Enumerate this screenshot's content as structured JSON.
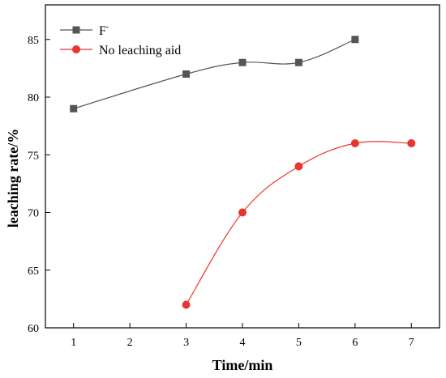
{
  "chart_data": {
    "type": "line",
    "xlabel": "Time/min",
    "ylabel": "leaching rate/%",
    "xlim": [
      0.5,
      7.5
    ],
    "ylim": [
      60,
      88
    ],
    "x_ticks": [
      1,
      2,
      3,
      4,
      5,
      6,
      7
    ],
    "y_ticks": [
      60,
      65,
      70,
      75,
      80,
      85
    ],
    "grid": false,
    "legend_position": "top-left",
    "smooth": true,
    "series": [
      {
        "name": "F",
        "name_superscript": "-",
        "color": "#555555",
        "marker": "square",
        "x": [
          1,
          3,
          4,
          5,
          6
        ],
        "values": [
          79,
          82,
          83,
          83,
          85
        ]
      },
      {
        "name": "No leaching aid",
        "color": "#e8362f",
        "marker": "circle",
        "x": [
          3,
          4,
          5,
          6,
          7
        ],
        "values": [
          62,
          70,
          74,
          76,
          76
        ]
      }
    ]
  }
}
